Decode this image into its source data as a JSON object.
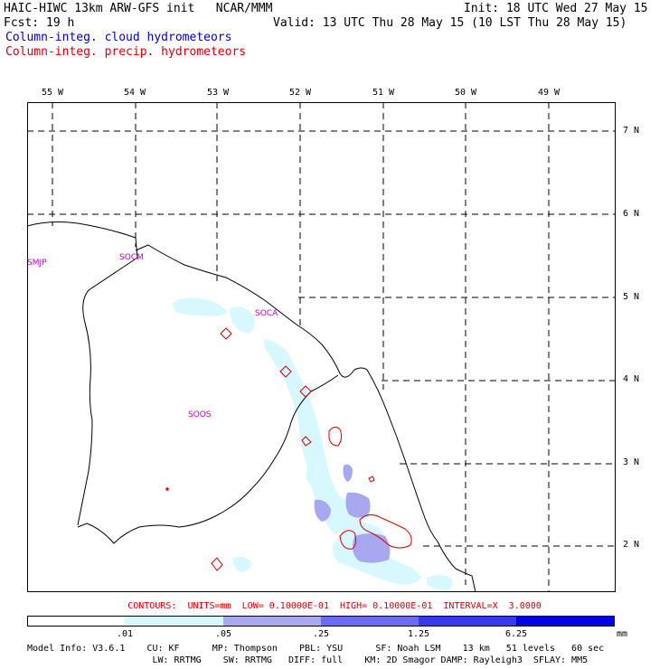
{
  "header": {
    "title": "HAIC-HIWC 13km ARW-GFS init   NCAR/MMM",
    "init": "Init: 18 UTC Wed 27 May 15",
    "fcst_label": "Fcst:",
    "fcst_value": "19 h",
    "valid": "Valid: 13 UTC Thu 28 May 15 (10 LST Thu 28 May 15)",
    "field_cloud": "Column-integ. cloud hydrometeors",
    "field_precip": "Column-integ. precip. hydrometeors"
  },
  "colors": {
    "cloud_text": "#0000cc",
    "precip": "#dd0000",
    "station": "#cc00cc",
    "shade_1": "#d8f8ff",
    "shade_2": "#a8a8f0",
    "shade_3": "#6c6cf0",
    "shade_4": "#3838f0",
    "shade_5": "#0000e8"
  },
  "map": {
    "lon_labels": [
      "55 W",
      "54 W",
      "53 W",
      "52 W",
      "51 W",
      "50 W",
      "49 W"
    ],
    "lat_labels": [
      "7 N",
      "6 N",
      "5 N",
      "4 N",
      "3 N",
      "2 N"
    ],
    "stations": [
      "SMJP",
      "SOCM",
      "SOCA",
      "SOOS"
    ]
  },
  "contours_line": "CONTOURS:  UNITS=mm  LOW= 0.10000E-01  HIGH= 0.10000E-01  INTERVAL=X  3.0000",
  "colorbar": {
    "ticks": [
      ".01",
      ".05",
      ".25",
      "1.25",
      "6.25"
    ],
    "unit": "mm"
  },
  "model_info": {
    "line1": "Model Info: V3.6.1    CU: KF      MP: Thompson    PBL: YSU      SF: Noah LSM    13 km   51 levels   60 sec",
    "line2": "                       LW: RRTMG    SW: RRTMG   DIFF: full    KM: 2D Smagor DAMP: Rayleigh3  SFLAY: MM5"
  }
}
